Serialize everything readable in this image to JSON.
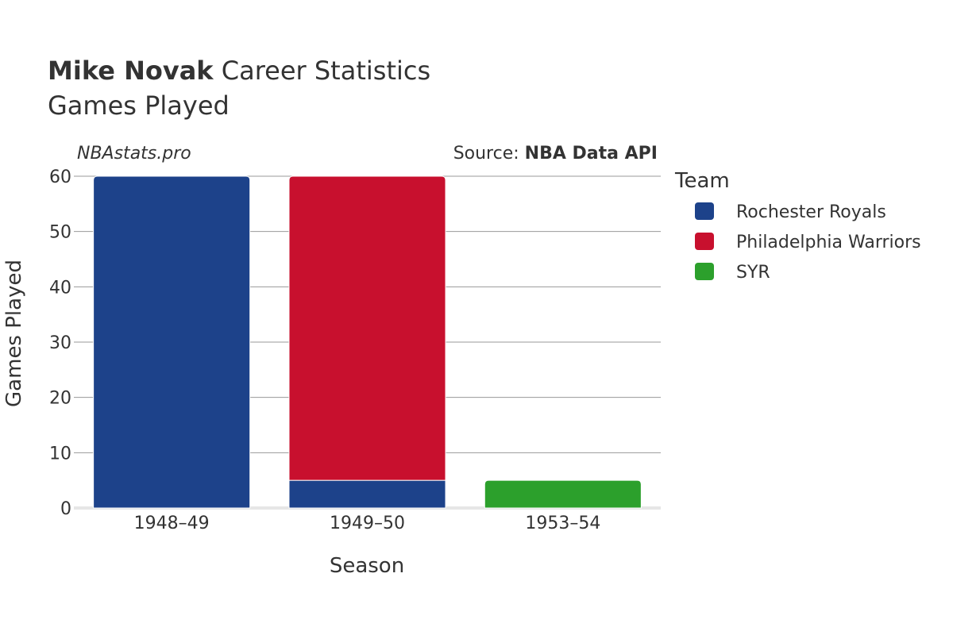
{
  "title": {
    "bold": "Mike Novak",
    "rest": " Career Statistics",
    "subtitle": "Games Played"
  },
  "watermark": "NBAstats.pro",
  "source": {
    "prefix": "Source: ",
    "name": "NBA Data API"
  },
  "legend": {
    "title": "Team"
  },
  "chart_data": {
    "type": "bar",
    "stacked": true,
    "categories": [
      "1948–49",
      "1949–50",
      "1953–54"
    ],
    "series": [
      {
        "name": "Rochester Royals",
        "color": "#1d428a",
        "values": [
          60,
          5,
          0
        ]
      },
      {
        "name": "Philadelphia Warriors",
        "color": "#c8102e",
        "values": [
          0,
          55,
          0
        ]
      },
      {
        "name": "SYR",
        "color": "#2ca02c",
        "values": [
          0,
          0,
          5
        ]
      }
    ],
    "xlabel": "Season",
    "ylabel": "Games Played",
    "ylim": [
      0,
      60
    ],
    "yticks": [
      0,
      10,
      20,
      30,
      40,
      50,
      60
    ],
    "grid": true,
    "legend_position": "right"
  }
}
